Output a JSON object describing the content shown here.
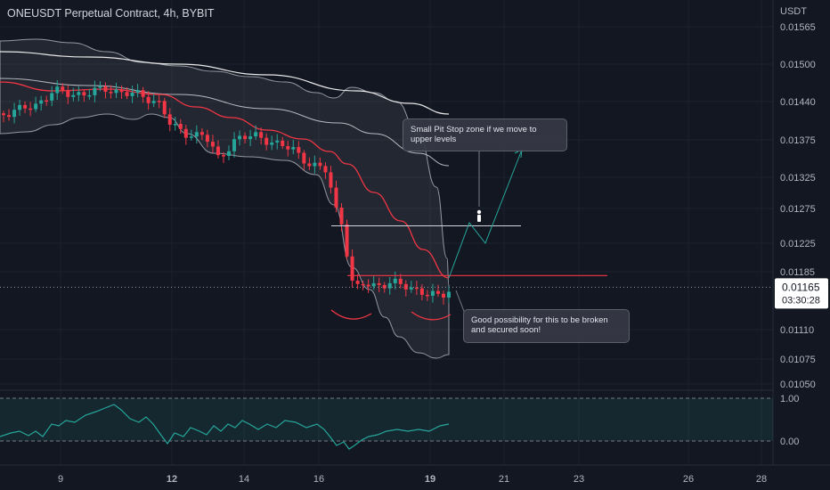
{
  "title": "ONEUSDT Perpetual Contract, 4h, BYBIT",
  "price_axis_unit": "USDT",
  "current_price": {
    "value": 0.01165,
    "label": "0.01165",
    "countdown": "03:30:28"
  },
  "chart_data": {
    "type": "candlestick",
    "y_ticks": [
      "0.01565",
      "0.01500",
      "0.01440",
      "0.01375",
      "0.01325",
      "0.01275",
      "0.01225",
      "0.01185",
      "0.01110",
      "0.01075",
      "0.01050"
    ],
    "x_ticks": [
      "9",
      "12",
      "14",
      "16",
      "19",
      "21",
      "23",
      "26",
      "28"
    ],
    "levels": [
      {
        "value": 0.0125,
        "color": "#d1d4dc"
      },
      {
        "value": 0.0118,
        "color": "#f23645"
      }
    ],
    "oscillator": {
      "y_ticks": [
        "1.00",
        "0.00"
      ]
    }
  },
  "annotations": [
    {
      "text": "Small Pit Stop zone if we move to upper levels"
    },
    {
      "text": "Good possibility for this to be broken and secured soon!"
    }
  ],
  "colors": {
    "up": "#26a69a",
    "down": "#f23645",
    "background": "#131722",
    "ema": "#f23645",
    "oscillator": "#26a69a"
  }
}
